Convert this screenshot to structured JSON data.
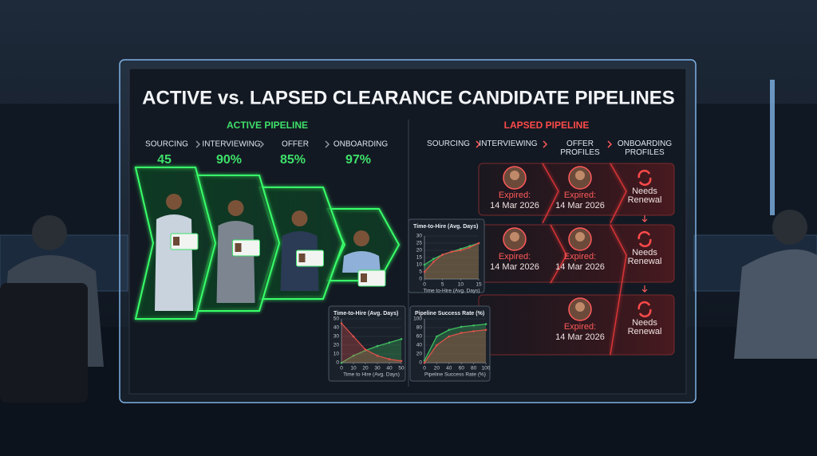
{
  "title": "ACTIVE vs. LAPSED CLEARANCE CANDIDATE PIPELINES",
  "active": {
    "heading": "ACTIVE PIPELINE",
    "stages": [
      {
        "name": "SOURCING",
        "value": "45"
      },
      {
        "name": "INTERVIEWING",
        "value": "90%"
      },
      {
        "name": "OFFER",
        "value": "85%"
      },
      {
        "name": "ONBOARDING",
        "value": "97%"
      }
    ]
  },
  "lapsed": {
    "heading": "LAPSED PIPELINE",
    "stages": [
      "SOURCING",
      "INTERVIEWING",
      "OFFER PROFILES",
      "ONBOARDING PROFILES"
    ],
    "rows": [
      [
        {
          "status": "Expired:",
          "date": "14 Mar 2026"
        },
        {
          "status": "Expired:",
          "date": "14 Mar 2026"
        },
        {
          "note": "Needs Renewal"
        }
      ],
      [
        {
          "status": "Expired:",
          "date": "14 Mar 2026"
        },
        {
          "status": "Expired:",
          "date": "14 Mar 2026"
        },
        {
          "note": "Needs Renewal"
        }
      ],
      [
        null,
        {
          "status": "Expired:",
          "date": "14 Mar 2026"
        },
        {
          "note": "Needs Renewal"
        }
      ]
    ]
  },
  "mini_charts": [
    {
      "title": "Time-to-Hire (Avg. Days)",
      "x_label": "Time to-Hire (Avg. Days)",
      "x": [
        0,
        2.5,
        5,
        7.5,
        10,
        12.5,
        15
      ],
      "xlim": [
        0,
        15
      ],
      "xticks": [
        0,
        5,
        10,
        15
      ],
      "ylim": [
        0,
        30
      ],
      "yticks": [
        0,
        5,
        10,
        15,
        20,
        25,
        30
      ],
      "series": [
        {
          "color": "#3fbf5f",
          "values": [
            10,
            14,
            17,
            19,
            21,
            23,
            25
          ]
        },
        {
          "color": "#e0504a",
          "values": [
            5,
            12,
            17,
            19,
            20,
            22,
            25
          ]
        }
      ]
    },
    {
      "title": "Time-to-Hire (Avg. Days)",
      "x_label": "Time to Hire (Avg. Days)",
      "x": [
        0,
        10,
        20,
        30,
        40,
        50
      ],
      "xlim": [
        0,
        50
      ],
      "xticks": [
        0,
        10,
        20,
        30,
        40,
        50
      ],
      "ylim": [
        0,
        50
      ],
      "yticks": [
        0,
        10,
        20,
        30,
        40,
        50
      ],
      "series": [
        {
          "color": "#3fbf5f",
          "values": [
            0,
            8,
            14,
            19,
            23,
            27
          ]
        },
        {
          "color": "#e0504a",
          "values": [
            45,
            30,
            15,
            8,
            4,
            2
          ]
        }
      ]
    },
    {
      "title": "Pipeline Success Rate (%)",
      "x_label": "Pipeline Success Rate (%)",
      "x": [
        0,
        20,
        40,
        60,
        80,
        100
      ],
      "xlim": [
        0,
        100
      ],
      "xticks": [
        0,
        20,
        40,
        60,
        80,
        100
      ],
      "ylim": [
        0,
        100
      ],
      "yticks": [
        0,
        20,
        40,
        60,
        80,
        100
      ],
      "series": [
        {
          "color": "#3fbf5f",
          "values": [
            5,
            60,
            75,
            82,
            85,
            88
          ]
        },
        {
          "color": "#e0504a",
          "values": [
            0,
            40,
            60,
            68,
            72,
            75
          ]
        }
      ]
    }
  ]
}
